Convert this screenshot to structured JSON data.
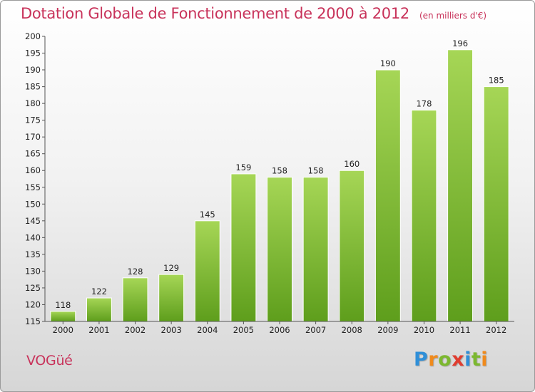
{
  "header": {
    "title": "Dotation Globale de Fonctionnement de 2000 à 2012",
    "unit": "(en milliers d'€)"
  },
  "footer": {
    "commune": "VOGüé",
    "logo": {
      "letters": [
        "P",
        "r",
        "o",
        "x",
        "i",
        "t",
        "i"
      ],
      "colors": [
        "#2f8fd8",
        "#f08a1c",
        "#7cb82f",
        "#e03c2f",
        "#2f8fd8",
        "#7cb82f",
        "#f08a1c"
      ]
    }
  },
  "chart_data": {
    "type": "bar",
    "categories": [
      "2000",
      "2001",
      "2002",
      "2003",
      "2004",
      "2005",
      "2006",
      "2007",
      "2008",
      "2009",
      "2010",
      "2011",
      "2012"
    ],
    "values": [
      118,
      122,
      128,
      129,
      145,
      159,
      158,
      158,
      160,
      190,
      178,
      196,
      185
    ],
    "ylim": [
      115,
      200
    ],
    "yticks": [
      115,
      120,
      125,
      130,
      135,
      140,
      145,
      150,
      155,
      160,
      165,
      170,
      175,
      180,
      185,
      190,
      195,
      200
    ],
    "grid": false,
    "colors": {
      "bar_light": "#a6d656",
      "bar_dark": "#5e9e1c",
      "axis": "#555555"
    }
  }
}
